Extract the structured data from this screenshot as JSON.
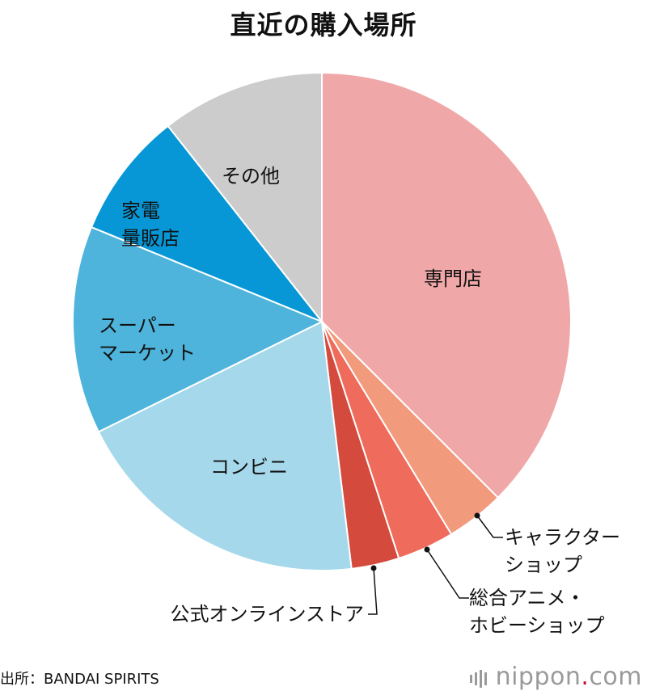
{
  "chart_data": {
    "type": "pie",
    "title": "直近の購入場所",
    "slices": [
      {
        "label": "専門店",
        "value": 37.5,
        "color": "#f0a7a8",
        "label_lines": [
          "専門店"
        ],
        "callout": false
      },
      {
        "label": "キャラクターショップ",
        "value": 3.8,
        "color": "#f29a7c",
        "label_lines": [
          "キャラクター",
          "ショップ"
        ],
        "callout": true
      },
      {
        "label": "総合アニメ・ホビーショップ",
        "value": 3.7,
        "color": "#ef6b5c",
        "label_lines": [
          "総合アニメ・",
          "ホビーショップ"
        ],
        "callout": true
      },
      {
        "label": "公式オンラインストア",
        "value": 3.1,
        "color": "#d44a3c",
        "label_lines": [
          "公式オンラインストア"
        ],
        "callout": true
      },
      {
        "label": "コンビニ",
        "value": 19.6,
        "color": "#a5d8ea",
        "label_lines": [
          "コンビニ"
        ],
        "callout": false
      },
      {
        "label": "スーパーマーケット",
        "value": 13.5,
        "color": "#4eb4db",
        "label_lines": [
          "スーパー",
          "マーケット"
        ],
        "callout": false
      },
      {
        "label": "家電量販店",
        "value": 8.2,
        "color": "#0797d6",
        "label_lines": [
          "家電",
          "量販店"
        ],
        "callout": false
      },
      {
        "label": "その他",
        "value": 10.6,
        "color": "#cccccc",
        "label_lines": [
          "その他"
        ],
        "callout": false
      }
    ]
  },
  "footer": {
    "source": "出所：BANDAI SPIRITS",
    "brand_main": "nippon",
    "brand_dot": ".",
    "brand_tail": "com"
  }
}
